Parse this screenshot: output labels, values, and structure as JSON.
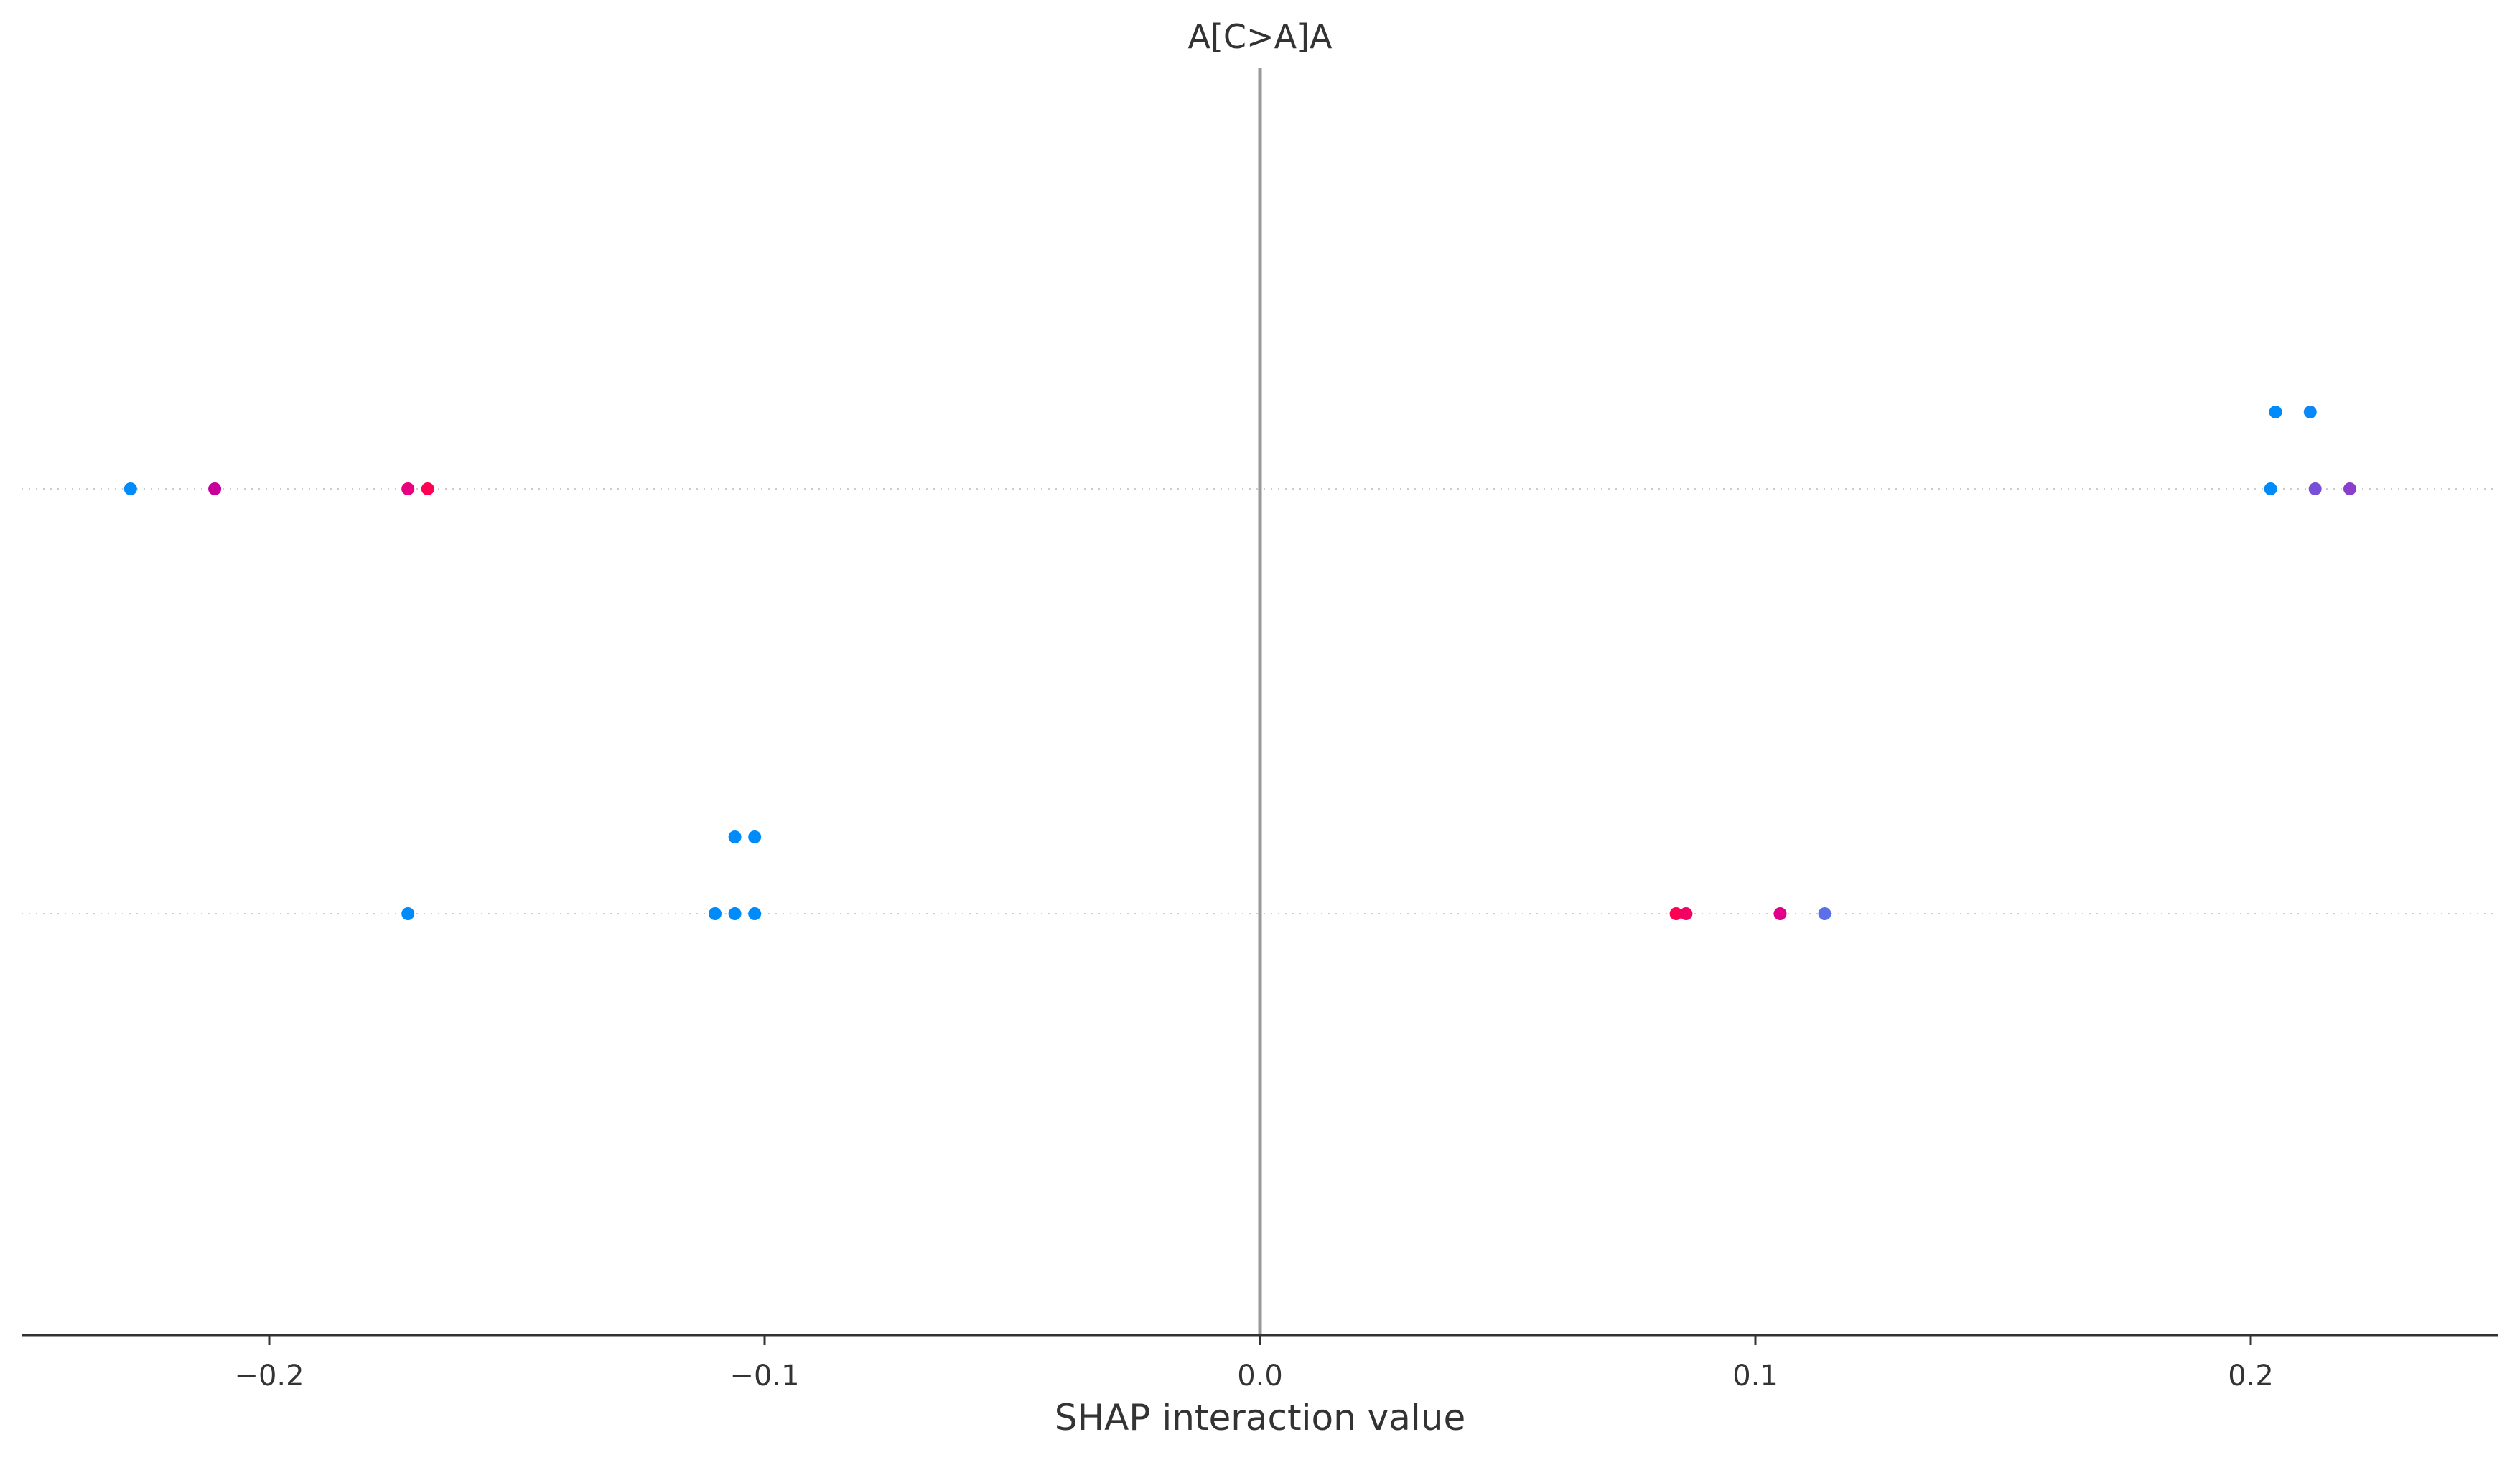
{
  "chart_data": {
    "type": "scatter",
    "title": "A[C>A]A",
    "xlabel": "SHAP interaction value",
    "ylabel": "",
    "xlim": [
      -0.25,
      0.25
    ],
    "x_ticks": [
      {
        "value": -0.2,
        "label": "−0.2"
      },
      {
        "value": -0.1,
        "label": "−0.1"
      },
      {
        "value": 0.0,
        "label": "0.0"
      },
      {
        "value": 0.1,
        "label": "0.1"
      },
      {
        "value": 0.2,
        "label": "0.2"
      }
    ],
    "zero_line": true,
    "grid": false,
    "rows": 2,
    "points": [
      {
        "x": -0.228,
        "row": 1,
        "stack": 0,
        "color": "#008bfb"
      },
      {
        "x": -0.211,
        "row": 1,
        "stack": 0,
        "color": "#c8009b"
      },
      {
        "x": -0.172,
        "row": 1,
        "stack": 0,
        "color": "#e8007f"
      },
      {
        "x": -0.168,
        "row": 1,
        "stack": 0,
        "color": "#ff0052"
      },
      {
        "x": 0.204,
        "row": 1,
        "stack": 0,
        "color": "#008bfb"
      },
      {
        "x": 0.213,
        "row": 1,
        "stack": 0,
        "color": "#7a4fd8"
      },
      {
        "x": 0.22,
        "row": 1,
        "stack": 0,
        "color": "#8a3fcc"
      },
      {
        "x": 0.205,
        "row": 1,
        "stack": 1,
        "color": "#008bfb"
      },
      {
        "x": 0.212,
        "row": 1,
        "stack": 1,
        "color": "#0a87f8"
      },
      {
        "x": -0.172,
        "row": 0,
        "stack": 0,
        "color": "#008bfb"
      },
      {
        "x": -0.11,
        "row": 0,
        "stack": 0,
        "color": "#008bfb"
      },
      {
        "x": -0.106,
        "row": 0,
        "stack": 0,
        "color": "#008bfb"
      },
      {
        "x": -0.102,
        "row": 0,
        "stack": 0,
        "color": "#008bfb"
      },
      {
        "x": -0.106,
        "row": 0,
        "stack": 1,
        "color": "#008bfb"
      },
      {
        "x": -0.102,
        "row": 0,
        "stack": 1,
        "color": "#008bfb"
      },
      {
        "x": 0.084,
        "row": 0,
        "stack": 0,
        "color": "#ff0052"
      },
      {
        "x": 0.086,
        "row": 0,
        "stack": 0,
        "color": "#f20063"
      },
      {
        "x": 0.105,
        "row": 0,
        "stack": 0,
        "color": "#e0008a"
      },
      {
        "x": 0.114,
        "row": 0,
        "stack": 0,
        "color": "#5a6fe8"
      }
    ],
    "colors": {
      "axis": "#333333",
      "zero_line": "#999999",
      "row_line": "#cccccc"
    }
  }
}
